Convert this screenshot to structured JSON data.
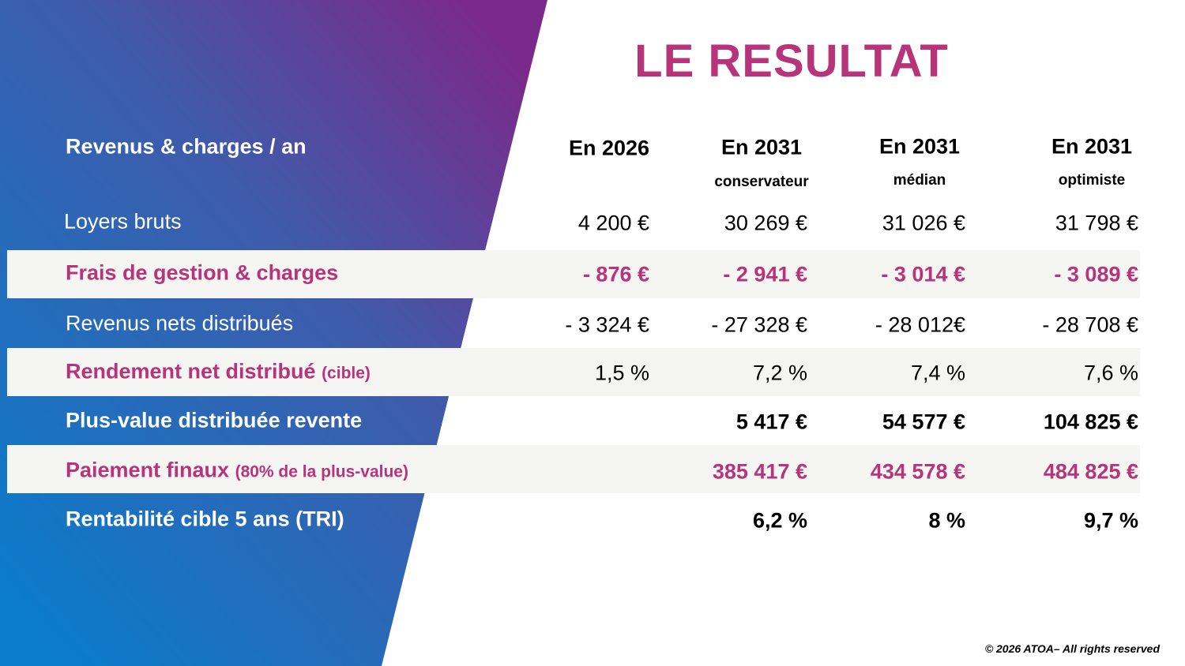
{
  "title": "LE RESULTAT",
  "colors": {
    "accent": "#b8347a",
    "band": "#f5f5f4",
    "gradient_top": "#7a2a8a",
    "gradient_bottom": "#0a7ccb"
  },
  "header": {
    "label": "Revenus & charges / an",
    "columns": [
      {
        "title": "En 2026",
        "sub": ""
      },
      {
        "title": "En 2031",
        "sub": "conservateur"
      },
      {
        "title": "En 2031",
        "sub": "médian"
      },
      {
        "title": "En 2031",
        "sub": "optimiste"
      }
    ]
  },
  "rows": [
    {
      "label": "Loyers bruts",
      "note": "",
      "values": [
        "4 200 €",
        "30 269 €",
        "31 026 €",
        "31 798 €"
      ]
    },
    {
      "label": "Frais de gestion & charges",
      "note": "",
      "values": [
        "- 876 €",
        "- 2 941 €",
        "- 3 014 €",
        "- 3 089 €"
      ]
    },
    {
      "label": "Revenus nets distribués",
      "note": "",
      "values": [
        "- 3 324 €",
        "- 27 328 €",
        "- 28 012€",
        "- 28 708 €"
      ]
    },
    {
      "label": "Rendement net distribué",
      "note": "(cible)",
      "values": [
        "1,5 %",
        "7,2 %",
        "7,4 %",
        "7,6 %"
      ]
    },
    {
      "label": "Plus-value distribuée revente",
      "note": "",
      "values": [
        "",
        "5 417 €",
        "54 577 €",
        "104 825 €"
      ]
    },
    {
      "label": "Paiement finaux",
      "note": "(80% de la plus-value)",
      "values": [
        "",
        "385 417 €",
        "434 578 €",
        "484 825 €"
      ]
    },
    {
      "label": "Rentabilité cible 5 ans (TRI)",
      "note": "",
      "values": [
        "",
        "6,2 %",
        "8 %",
        "9,7 %"
      ]
    }
  ],
  "footer": "© 2026 ATOA– All rights reserved"
}
